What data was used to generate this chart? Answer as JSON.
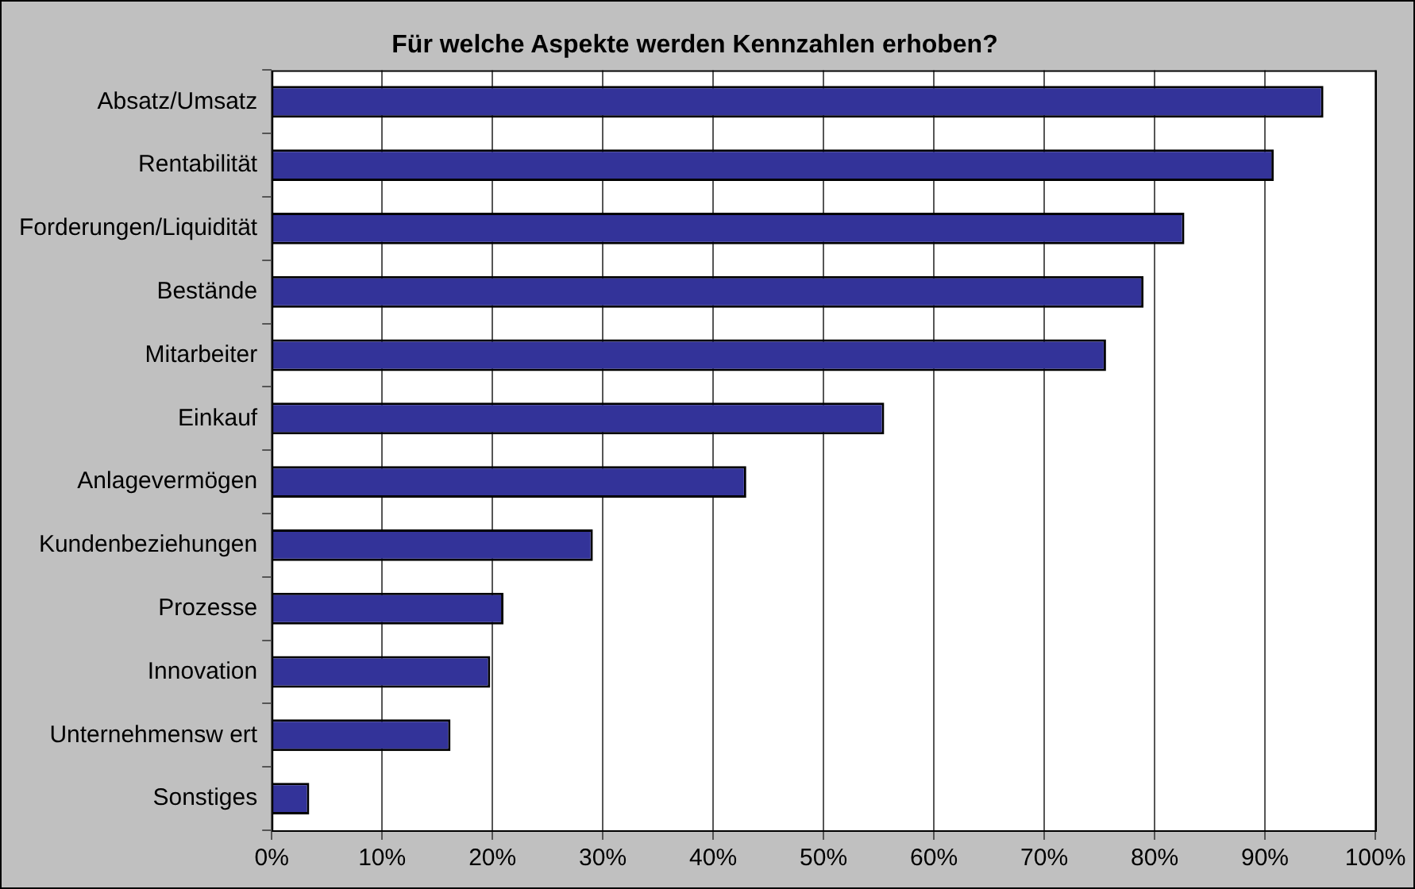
{
  "chart_data": {
    "type": "bar",
    "orientation": "horizontal",
    "title": "Für welche Aspekte werden Kennzahlen erhoben?",
    "categories": [
      "Absatz/Umsatz",
      "Rentabilität",
      "Forderungen/Liquidität",
      "Bestände",
      "Mitarbeiter",
      "Einkauf",
      "Anlagevermögen",
      "Kundenbeziehungen",
      "Prozesse",
      "Innovation",
      "Unternehmensw ert",
      "Sonstiges"
    ],
    "values": [
      95.3,
      90.8,
      82.7,
      79.0,
      75.6,
      55.5,
      43.0,
      29.1,
      21.0,
      19.8,
      16.2,
      3.4
    ],
    "color": "#333399",
    "xlim": [
      0,
      100
    ],
    "xticks": [
      {
        "value": 0,
        "label": "0%"
      },
      {
        "value": 10,
        "label": "10%"
      },
      {
        "value": 20,
        "label": "20%"
      },
      {
        "value": 30,
        "label": "30%"
      },
      {
        "value": 40,
        "label": "40%"
      },
      {
        "value": 50,
        "label": "50%"
      },
      {
        "value": 60,
        "label": "60%"
      },
      {
        "value": 70,
        "label": "70%"
      },
      {
        "value": 80,
        "label": "80%"
      },
      {
        "value": 90,
        "label": "90%"
      },
      {
        "value": 100,
        "label": "100%"
      }
    ],
    "grid": "x"
  }
}
